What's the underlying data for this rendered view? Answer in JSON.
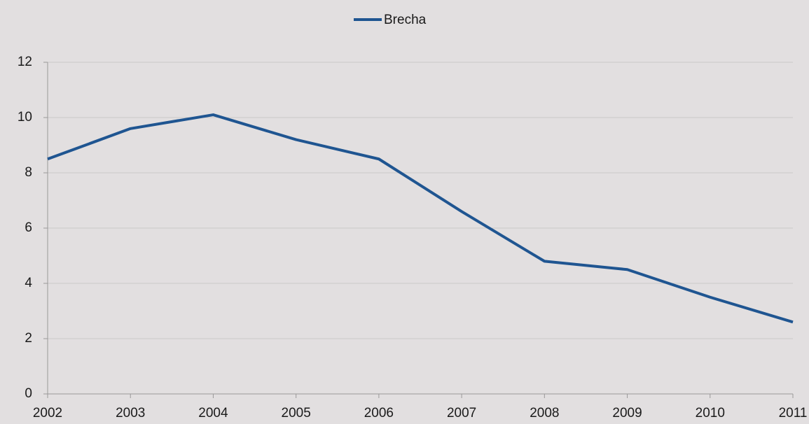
{
  "chart_data": {
    "type": "line",
    "x": [
      2002,
      2003,
      2004,
      2005,
      2006,
      2007,
      2008,
      2009,
      2010,
      2011
    ],
    "series": [
      {
        "name": "Brecha",
        "color": "#1f5591",
        "values": [
          8.5,
          9.6,
          10.1,
          9.2,
          8.5,
          6.6,
          4.8,
          4.5,
          3.5,
          2.6
        ]
      }
    ],
    "xlim": [
      2002,
      2011
    ],
    "xticks": [
      2002,
      2003,
      2004,
      2005,
      2006,
      2007,
      2008,
      2009,
      2010,
      2011
    ],
    "ylim": [
      0,
      12
    ],
    "yticks": [
      0,
      2,
      4,
      6,
      8,
      10,
      12
    ],
    "grid": true,
    "legend": "top"
  }
}
